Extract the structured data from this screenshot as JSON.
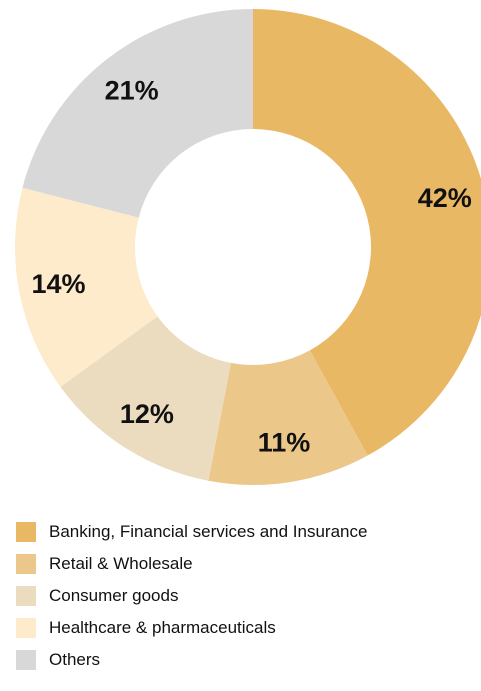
{
  "chart_data": {
    "type": "pie",
    "donut": true,
    "title": "",
    "legend_position": "bottom",
    "categories": [
      "Banking, Financial services and Insurance",
      "Retail & Wholesale",
      "Consumer goods",
      "Healthcare & pharmaceuticals",
      "Others"
    ],
    "values": [
      42,
      11,
      12,
      14,
      21
    ],
    "labels": [
      "42%",
      "11%",
      "12%",
      "14%",
      "21%"
    ],
    "colors": [
      "#E9B865",
      "#EBC88A",
      "#ECDCBF",
      "#FDEBCB",
      "#D8D8D8"
    ]
  }
}
